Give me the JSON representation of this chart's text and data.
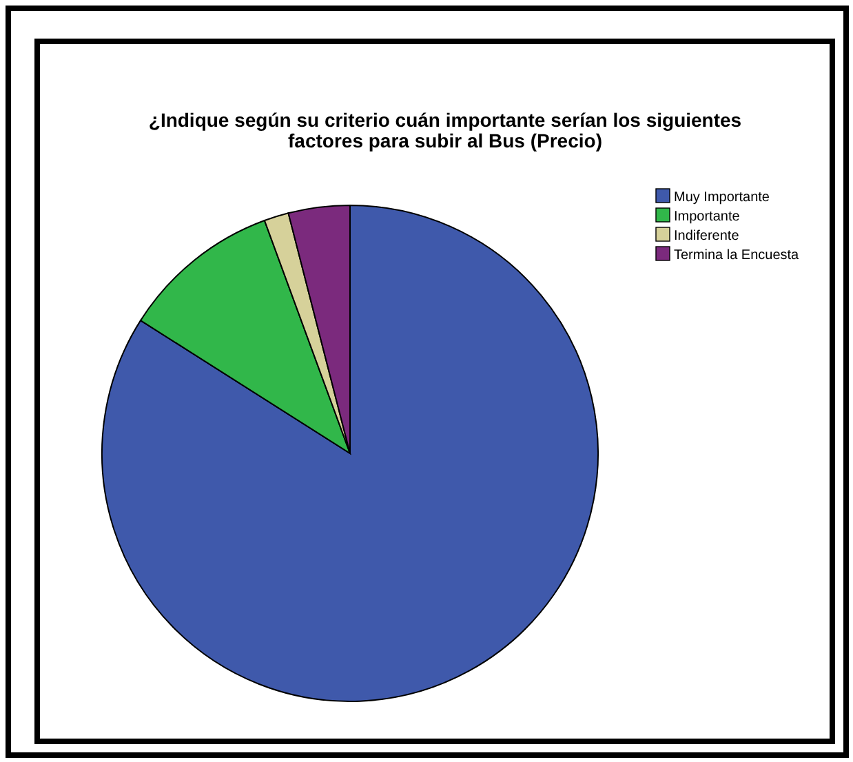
{
  "chart_data": {
    "type": "pie",
    "title": "¿Indique según su criterio cuán importante serían los siguientes factores para subir al Bus (Precio)",
    "categories": [
      "Muy Importante",
      "Importante",
      "Indiferente",
      "Termina la Encuesta"
    ],
    "values": [
      84.0,
      10.4,
      1.6,
      4.0
    ],
    "colors": [
      "#3f59ab",
      "#31b74a",
      "#d6d19a",
      "#7b2a7d"
    ],
    "legend": "top right"
  }
}
